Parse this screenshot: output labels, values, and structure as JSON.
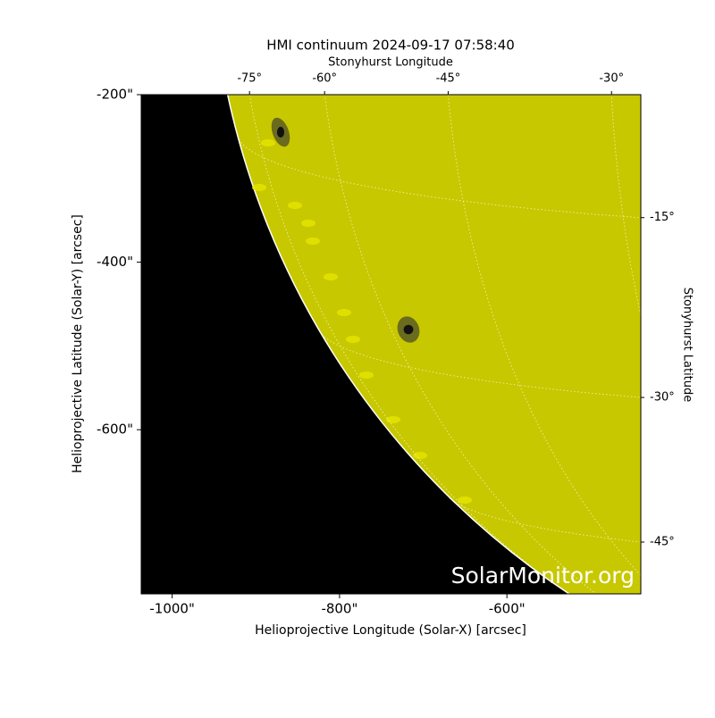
{
  "chart_data": {
    "type": "image",
    "title": "HMI continuum 2024-09-17 07:58:40",
    "xlabel": "Helioprojective Longitude (Solar-X) [arcsec]",
    "ylabel": "Helioprojective Latitude (Solar-Y) [arcsec]",
    "top_axis_label": "Stonyhurst Longitude",
    "right_axis_label": "Stonyhurst Latitude",
    "watermark": "SolarMonitor.org",
    "xlim": [
      -1037,
      -440
    ],
    "ylim": [
      -796,
      -200
    ],
    "xticks": [
      {
        "value": -1000,
        "label": "-1000\""
      },
      {
        "value": -800,
        "label": "-800\""
      },
      {
        "value": -600,
        "label": "-600\""
      }
    ],
    "yticks": [
      {
        "value": -200,
        "label": "-200\""
      },
      {
        "value": -400,
        "label": "-400\""
      },
      {
        "value": -600,
        "label": "-600\""
      }
    ],
    "lon_ticks": [
      {
        "value": -75,
        "label": "-75°"
      },
      {
        "value": -60,
        "label": "-60°"
      },
      {
        "value": -45,
        "label": "-45°"
      },
      {
        "value": -30,
        "label": "-30°"
      }
    ],
    "lat_ticks": [
      {
        "value": -15,
        "label": "-15°"
      },
      {
        "value": -30,
        "label": "-30°"
      },
      {
        "value": -45,
        "label": "-45°"
      }
    ]
  }
}
